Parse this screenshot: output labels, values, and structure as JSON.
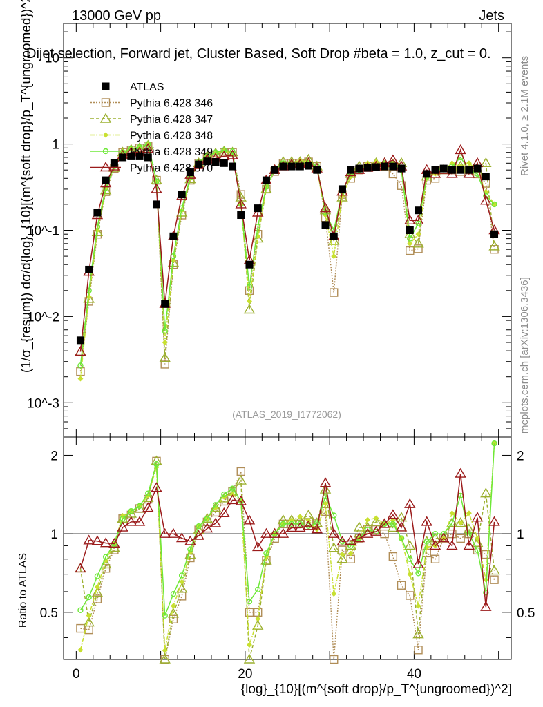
{
  "header": {
    "energy_label": "13000 GeV pp",
    "category_label": "Jets",
    "plot_title": "Dijet selection, Forward jet, Cluster Based, Soft Drop #beta = 1.0, z_cut = 0.",
    "watermark": "(ATLAS_2019_I1772062)",
    "rivet_label": "Rivet 4.1.0, ≥ 2.1M events",
    "site_label": "mcplots.cern.ch [arXiv:1306.3436]"
  },
  "axes": {
    "main_ylabel": "(1/σ_{resum}) dσ/d{log}_{10}[(m^{soft drop}/p_T^{ungroomed})^2]",
    "ratio_ylabel": "Ratio to ATLAS",
    "xlabel": "{log}_{10}[(m^{soft drop}/p_T^{ungroomed})^2]",
    "main_yticks": [
      "10^-3",
      "10^-2",
      "10^-1",
      "1",
      "10"
    ],
    "ratio_yticks": [
      "0.5",
      "1",
      "2"
    ],
    "xticks": [
      "0",
      "20",
      "40"
    ]
  },
  "chart_data": {
    "type": "scatter",
    "xlim": [
      -1.5,
      51.5
    ],
    "main_ylim": [
      0.0004,
      25
    ],
    "ratio_ylim": [
      0.33,
      2.35
    ],
    "main_scale": "log",
    "ratio_scale": "log",
    "legend_position": "top-left",
    "series": [
      {
        "name": "ATLAS",
        "color": "#000000",
        "marker": "square-filled",
        "dash": "",
        "x": [
          0.5,
          1.5,
          2.5,
          3.5,
          4.5,
          5.5,
          6.5,
          7.5,
          8.5,
          9.5,
          10.5,
          11.5,
          12.5,
          13.5,
          14.5,
          15.5,
          16.5,
          17.5,
          18.5,
          19.5,
          20.5,
          21.5,
          22.5,
          23.5,
          24.5,
          25.5,
          26.5,
          27.5,
          28.5,
          29.5,
          30.5,
          31.5,
          32.5,
          33.5,
          34.5,
          35.5,
          36.5,
          37.5,
          38.5,
          39.5,
          40.5,
          41.5,
          42.5,
          43.5,
          44.5,
          45.5,
          46.5,
          47.5,
          48.5,
          49.5
        ],
        "y": [
          0.0053,
          0.035,
          0.16,
          0.38,
          0.6,
          0.7,
          0.72,
          0.72,
          0.7,
          0.2,
          0.014,
          0.085,
          0.26,
          0.47,
          0.58,
          0.63,
          0.62,
          0.6,
          0.55,
          0.15,
          0.04,
          0.18,
          0.38,
          0.5,
          0.55,
          0.55,
          0.55,
          0.56,
          0.5,
          0.115,
          0.085,
          0.3,
          0.5,
          0.52,
          0.53,
          0.54,
          0.55,
          0.55,
          0.52,
          0.1,
          0.17,
          0.45,
          0.5,
          0.52,
          0.5,
          0.5,
          0.5,
          0.52,
          0.42,
          0.09
        ]
      },
      {
        "name": "Pythia 6.428 346",
        "color": "#b08d57",
        "marker": "square-open",
        "dash": "2,2",
        "x": [
          0.5,
          1.5,
          2.5,
          3.5,
          4.5,
          5.5,
          6.5,
          7.5,
          8.5,
          9.5,
          10.5,
          11.5,
          12.5,
          13.5,
          14.5,
          15.5,
          16.5,
          17.5,
          18.5,
          19.5,
          20.5,
          21.5,
          22.5,
          23.5,
          24.5,
          25.5,
          26.5,
          27.5,
          28.5,
          29.5,
          30.5,
          31.5,
          32.5,
          33.5,
          34.5,
          35.5,
          36.5,
          37.5,
          38.5,
          39.5,
          40.5,
          41.5,
          42.5,
          43.5,
          44.5,
          45.5,
          46.5,
          47.5,
          48.5,
          49.5
        ],
        "y": [
          0.0023,
          0.015,
          0.09,
          0.28,
          0.52,
          0.8,
          0.85,
          0.9,
          0.95,
          0.38,
          0.0028,
          0.04,
          0.15,
          0.38,
          0.6,
          0.7,
          0.75,
          0.8,
          0.8,
          0.26,
          0.02,
          0.09,
          0.3,
          0.48,
          0.6,
          0.6,
          0.6,
          0.62,
          0.55,
          0.14,
          0.019,
          0.26,
          0.4,
          0.5,
          0.55,
          0.56,
          0.55,
          0.45,
          0.33,
          0.058,
          0.061,
          0.38,
          0.4,
          0.5,
          0.5,
          0.48,
          0.5,
          0.45,
          0.35,
          0.06
        ]
      },
      {
        "name": "Pythia 6.428 347",
        "color": "#9cb030",
        "marker": "triangle-open",
        "dash": "5,3",
        "x": [
          0.5,
          1.5,
          2.5,
          3.5,
          4.5,
          5.5,
          6.5,
          7.5,
          8.5,
          9.5,
          10.5,
          11.5,
          12.5,
          13.5,
          14.5,
          15.5,
          16.5,
          17.5,
          18.5,
          19.5,
          20.5,
          21.5,
          22.5,
          23.5,
          24.5,
          25.5,
          26.5,
          27.5,
          28.5,
          29.5,
          30.5,
          31.5,
          32.5,
          33.5,
          34.5,
          35.5,
          36.5,
          37.5,
          38.5,
          39.5,
          40.5,
          41.5,
          42.5,
          43.5,
          44.5,
          45.5,
          46.5,
          47.5,
          48.5,
          49.5
        ],
        "y": [
          0.0039,
          0.016,
          0.095,
          0.29,
          0.53,
          0.8,
          0.86,
          0.9,
          0.96,
          0.38,
          0.0033,
          0.042,
          0.16,
          0.39,
          0.6,
          0.72,
          0.78,
          0.82,
          0.8,
          0.24,
          0.012,
          0.08,
          0.3,
          0.5,
          0.62,
          0.62,
          0.62,
          0.66,
          0.55,
          0.17,
          0.075,
          0.24,
          0.45,
          0.55,
          0.56,
          0.6,
          0.6,
          0.58,
          0.6,
          0.09,
          0.07,
          0.42,
          0.48,
          0.5,
          0.55,
          0.55,
          0.52,
          0.48,
          0.6,
          0.065
        ]
      },
      {
        "name": "Pythia 6.428 348",
        "color": "#c8e030",
        "marker": "diamond-filled",
        "dash": "6,2,2,2",
        "x": [
          0.5,
          1.5,
          2.5,
          3.5,
          4.5,
          5.5,
          6.5,
          7.5,
          8.5,
          9.5,
          10.5,
          11.5,
          12.5,
          13.5,
          14.5,
          15.5,
          16.5,
          17.5,
          18.5,
          19.5,
          20.5,
          21.5,
          22.5,
          23.5,
          24.5,
          25.5,
          26.5,
          27.5,
          28.5,
          29.5,
          30.5,
          31.5,
          32.5,
          33.5,
          34.5,
          35.5,
          36.5,
          37.5,
          38.5,
          39.5,
          40.5,
          41.5,
          42.5,
          43.5,
          44.5,
          45.5,
          46.5,
          47.5,
          48.5,
          49.5
        ],
        "y": [
          0.0019,
          0.017,
          0.1,
          0.3,
          0.55,
          0.82,
          0.88,
          0.92,
          0.98,
          0.36,
          0.005,
          0.045,
          0.17,
          0.4,
          0.62,
          0.72,
          0.78,
          0.83,
          0.78,
          0.2,
          0.015,
          0.085,
          0.31,
          0.5,
          0.6,
          0.62,
          0.64,
          0.63,
          0.52,
          0.15,
          0.05,
          0.25,
          0.42,
          0.5,
          0.6,
          0.62,
          0.6,
          0.62,
          0.5,
          0.07,
          0.09,
          0.4,
          0.45,
          0.5,
          0.6,
          0.55,
          0.6,
          0.5,
          0.28,
          0.2
        ]
      },
      {
        "name": "Pythia 6.428 349",
        "color": "#6ee838",
        "marker": "circle-open",
        "dash": "",
        "x": [
          0.5,
          1.5,
          2.5,
          3.5,
          4.5,
          5.5,
          6.5,
          7.5,
          8.5,
          9.5,
          10.5,
          11.5,
          12.5,
          13.5,
          14.5,
          15.5,
          16.5,
          17.5,
          18.5,
          19.5,
          20.5,
          21.5,
          22.5,
          23.5,
          24.5,
          25.5,
          26.5,
          27.5,
          28.5,
          29.5,
          30.5,
          31.5,
          32.5,
          33.5,
          34.5,
          35.5,
          36.5,
          37.5,
          38.5,
          39.5,
          40.5,
          41.5,
          42.5,
          43.5,
          44.5,
          45.5,
          46.5,
          47.5,
          48.5,
          49.5
        ],
        "y": [
          0.0027,
          0.02,
          0.11,
          0.31,
          0.55,
          0.8,
          0.88,
          0.92,
          1.0,
          0.37,
          0.0068,
          0.05,
          0.18,
          0.41,
          0.62,
          0.72,
          0.8,
          0.85,
          0.82,
          0.2,
          0.022,
          0.11,
          0.32,
          0.5,
          0.6,
          0.6,
          0.6,
          0.6,
          0.55,
          0.16,
          0.1,
          0.28,
          0.45,
          0.5,
          0.55,
          0.55,
          0.6,
          0.6,
          0.5,
          0.08,
          0.12,
          0.42,
          0.5,
          0.52,
          0.55,
          0.7,
          0.5,
          0.45,
          0.25,
          0.2
        ]
      },
      {
        "name": "Pythia 6.428 370",
        "color": "#9b1b1b",
        "marker": "triangle-open",
        "dash": "",
        "x": [
          0.5,
          1.5,
          2.5,
          3.5,
          4.5,
          5.5,
          6.5,
          7.5,
          8.5,
          9.5,
          10.5,
          11.5,
          12.5,
          13.5,
          14.5,
          15.5,
          16.5,
          17.5,
          18.5,
          19.5,
          20.5,
          21.5,
          22.5,
          23.5,
          24.5,
          25.5,
          26.5,
          27.5,
          28.5,
          29.5,
          30.5,
          31.5,
          32.5,
          33.5,
          34.5,
          35.5,
          36.5,
          37.5,
          38.5,
          39.5,
          40.5,
          41.5,
          42.5,
          43.5,
          44.5,
          45.5,
          46.5,
          47.5,
          48.5,
          49.5
        ],
        "y": [
          0.0039,
          0.033,
          0.15,
          0.35,
          0.55,
          0.74,
          0.8,
          0.8,
          0.88,
          0.3,
          0.014,
          0.085,
          0.25,
          0.44,
          0.57,
          0.66,
          0.68,
          0.72,
          0.74,
          0.2,
          0.045,
          0.16,
          0.38,
          0.5,
          0.55,
          0.58,
          0.58,
          0.6,
          0.52,
          0.18,
          0.085,
          0.28,
          0.47,
          0.5,
          0.53,
          0.55,
          0.6,
          0.65,
          0.55,
          0.13,
          0.13,
          0.5,
          0.45,
          0.5,
          0.45,
          0.85,
          0.45,
          0.6,
          0.22,
          0.1
        ]
      }
    ]
  }
}
